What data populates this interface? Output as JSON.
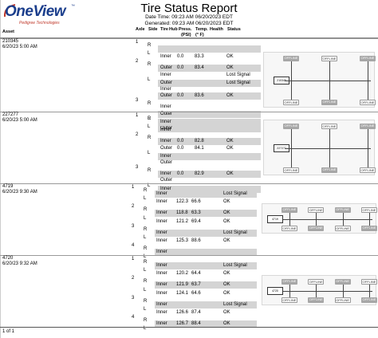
{
  "logo": {
    "name": "OneView",
    "tagline": "Pedigree Technologies",
    "tm": "™"
  },
  "report": {
    "title": "Tire Status Report",
    "date_time": "Date Time: 09:23 AM 06/20/2023 EDT",
    "generated": "Generated: 09:23 AM 06/20/2023 EDT"
  },
  "columns": {
    "asset": "Asset",
    "axle": "Axle",
    "side": "Side",
    "tire": "Tire",
    "hub": "Hub",
    "pressure": "Press.",
    "pressure_unit": "(PSI)",
    "temp": "Temp.",
    "temp_unit": "(° F)",
    "health": "Health",
    "status": "Status"
  },
  "assets": [
    {
      "id": "210345",
      "date": "6/20/23 5:00 AM",
      "diagram_label": "210345",
      "axles": [
        {
          "num": "1",
          "sides": [
            {
              "side": "R",
              "rows": [
                {
                  "tire": "",
                  "pressure": "",
                  "temp": "",
                  "status": ""
                }
              ]
            },
            {
              "side": "L",
              "rows": [
                {
                  "tire": "Inner",
                  "pressure": "0.0",
                  "temp": "83.3",
                  "status": "OK"
                }
              ]
            }
          ]
        },
        {
          "num": "2",
          "sides": [
            {
              "side": "R",
              "rows": [
                {
                  "tire": "Outer",
                  "pressure": "0.0",
                  "temp": "83.4",
                  "status": "OK"
                },
                {
                  "tire": "Inner",
                  "pressure": "",
                  "temp": "",
                  "status": "Lost Signal"
                }
              ]
            },
            {
              "side": "L",
              "rows": [
                {
                  "tire": "Outer",
                  "pressure": "",
                  "temp": "",
                  "status": "Lost Signal"
                },
                {
                  "tire": "Inner",
                  "pressure": "",
                  "temp": "",
                  "status": ""
                },
                {
                  "tire": "Outer",
                  "pressure": "0.0",
                  "temp": "83.6",
                  "status": "OK"
                }
              ]
            }
          ]
        },
        {
          "num": "3",
          "sides": [
            {
              "side": "R",
              "rows": [
                {
                  "tire": "Inner",
                  "pressure": "",
                  "temp": "",
                  "status": ""
                },
                {
                  "tire": "Outer",
                  "pressure": "",
                  "temp": "",
                  "status": ""
                }
              ]
            },
            {
              "side": "L",
              "rows": [
                {
                  "tire": "Inner",
                  "pressure": "",
                  "temp": "",
                  "status": ""
                },
                {
                  "tire": "Outer",
                  "pressure": "",
                  "temp": "",
                  "status": ""
                }
              ]
            }
          ]
        }
      ]
    },
    {
      "id": "227277",
      "date": "6/20/23 5:00 AM",
      "diagram_label": "227277",
      "axles": [
        {
          "num": "1",
          "sides": [
            {
              "side": "R",
              "rows": [
                {
                  "tire": "Inner",
                  "pressure": "",
                  "temp": "",
                  "status": ""
                }
              ]
            },
            {
              "side": "L",
              "rows": [
                {
                  "tire": "Inner",
                  "pressure": "",
                  "temp": "",
                  "status": ""
                }
              ]
            }
          ]
        },
        {
          "num": "2",
          "sides": [
            {
              "side": "R",
              "rows": [
                {
                  "tire": "Inner",
                  "pressure": "0.0",
                  "temp": "82.8",
                  "status": "OK"
                },
                {
                  "tire": "Outer",
                  "pressure": "0.0",
                  "temp": "84.1",
                  "status": "OK"
                }
              ]
            },
            {
              "side": "L",
              "rows": [
                {
                  "tire": "Inner",
                  "pressure": "",
                  "temp": "",
                  "status": ""
                },
                {
                  "tire": "Outer",
                  "pressure": "",
                  "temp": "",
                  "status": ""
                }
              ]
            }
          ]
        },
        {
          "num": "3",
          "sides": [
            {
              "side": "R",
              "rows": [
                {
                  "tire": "Inner",
                  "pressure": "0.0",
                  "temp": "82.9",
                  "status": "OK"
                },
                {
                  "tire": "Outer",
                  "pressure": "",
                  "temp": "",
                  "status": ""
                }
              ]
            },
            {
              "side": "L",
              "rows": [
                {
                  "tire": "Inner",
                  "pressure": "",
                  "temp": "",
                  "status": ""
                },
                {
                  "tire": "Outer",
                  "pressure": "",
                  "temp": "",
                  "status": ""
                }
              ]
            }
          ]
        }
      ]
    },
    {
      "id": "4719",
      "date": "6/20/23 9:30 AM",
      "diagram_label": "4719",
      "axles": [
        {
          "num": "1",
          "sides": [
            {
              "side": "R",
              "rows": [
                {
                  "tire": "Inner",
                  "pressure": "",
                  "temp": "",
                  "status": "Lost Signal"
                }
              ]
            },
            {
              "side": "L",
              "rows": [
                {
                  "tire": "Inner",
                  "pressure": "122.3",
                  "temp": "66.6",
                  "status": "OK"
                }
              ]
            }
          ]
        },
        {
          "num": "2",
          "sides": [
            {
              "side": "R",
              "rows": [
                {
                  "tire": "Inner",
                  "pressure": "118.8",
                  "temp": "63.3",
                  "status": "OK"
                }
              ]
            },
            {
              "side": "L",
              "rows": [
                {
                  "tire": "Inner",
                  "pressure": "121.2",
                  "temp": "69.4",
                  "status": "OK"
                }
              ]
            }
          ]
        },
        {
          "num": "3",
          "sides": [
            {
              "side": "R",
              "rows": [
                {
                  "tire": "Inner",
                  "pressure": "",
                  "temp": "",
                  "status": "Lost Signal"
                }
              ]
            },
            {
              "side": "L",
              "rows": [
                {
                  "tire": "Inner",
                  "pressure": "125.3",
                  "temp": "88.6",
                  "status": "OK"
                }
              ]
            }
          ]
        },
        {
          "num": "4",
          "sides": [
            {
              "side": "R",
              "rows": [
                {
                  "tire": "Inner",
                  "pressure": "",
                  "temp": "",
                  "status": ""
                }
              ]
            },
            {
              "side": "L",
              "rows": []
            }
          ]
        }
      ]
    },
    {
      "id": "4720",
      "date": "6/20/23 9:32 AM",
      "diagram_label": "4720",
      "axles": [
        {
          "num": "1",
          "sides": [
            {
              "side": "R",
              "rows": [
                {
                  "tire": "Inner",
                  "pressure": "",
                  "temp": "",
                  "status": "Lost Signal"
                }
              ]
            },
            {
              "side": "L",
              "rows": [
                {
                  "tire": "Inner",
                  "pressure": "120.2",
                  "temp": "64.4",
                  "status": "OK"
                }
              ]
            }
          ]
        },
        {
          "num": "2",
          "sides": [
            {
              "side": "R",
              "rows": [
                {
                  "tire": "Inner",
                  "pressure": "121.9",
                  "temp": "63.7",
                  "status": "OK"
                }
              ]
            },
            {
              "side": "L",
              "rows": [
                {
                  "tire": "Inner",
                  "pressure": "124.1",
                  "temp": "64.6",
                  "status": "OK"
                }
              ]
            }
          ]
        },
        {
          "num": "3",
          "sides": [
            {
              "side": "R",
              "rows": [
                {
                  "tire": "Inner",
                  "pressure": "",
                  "temp": "",
                  "status": "Lost Signal"
                }
              ]
            },
            {
              "side": "L",
              "rows": [
                {
                  "tire": "Inner",
                  "pressure": "126.6",
                  "temp": "87.4",
                  "status": "OK"
                }
              ]
            }
          ]
        },
        {
          "num": "4",
          "sides": [
            {
              "side": "R",
              "rows": [
                {
                  "tire": "Inner",
                  "pressure": "126.7",
                  "temp": "88.4",
                  "status": "OK"
                }
              ]
            },
            {
              "side": "L",
              "rows": []
            }
          ]
        }
      ]
    }
  ],
  "diagram_text": {
    "offline": "OFFLINE",
    "temp_psi_a": "83° F\n0 PSI",
    "temp_psi_b": "84° F\n0 PSI"
  },
  "footer": {
    "page": "1 of 1"
  },
  "colors": {
    "band": "#d4d4d4",
    "brand": "#1b3e8c",
    "accent": "#c0392b"
  }
}
